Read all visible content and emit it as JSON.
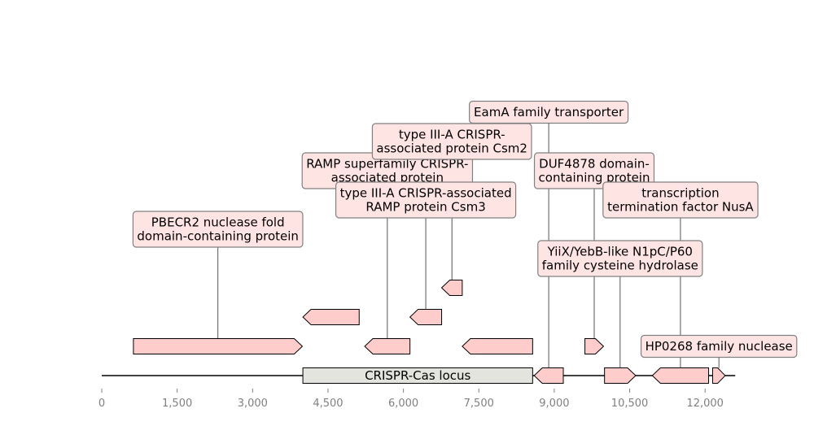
{
  "axis": {
    "min": 0,
    "max": 12600,
    "ticks": [
      {
        "value": 0,
        "label": "0"
      },
      {
        "value": 1500,
        "label": "1,500"
      },
      {
        "value": 3000,
        "label": "3,000"
      },
      {
        "value": 4500,
        "label": "4,500"
      },
      {
        "value": 6000,
        "label": "6,000"
      },
      {
        "value": 7500,
        "label": "7,500"
      },
      {
        "value": 9000,
        "label": "9,000"
      },
      {
        "value": 10500,
        "label": "10,500"
      },
      {
        "value": 12000,
        "label": "12,000"
      }
    ]
  },
  "locus": {
    "label": "CRISPR-Cas locus",
    "start": 4000,
    "end": 8570
  },
  "colors": {
    "gene_fill": "#ffcccc",
    "label_fill": "#ffe4e4",
    "locus_fill": "#e3e4de"
  },
  "genes": [
    {
      "start": 630,
      "end": 3990,
      "strand": 1,
      "level": 1,
      "label": [
        "PBECR2 nuclease fold",
        "domain-containing protein"
      ],
      "label_level": 5
    },
    {
      "start": 4000,
      "end": 5120,
      "strand": -1,
      "level": 2,
      "label": null
    },
    {
      "start": 5230,
      "end": 6130,
      "strand": -1,
      "level": 1,
      "label": [
        "RAMP superfamily CRISPR-",
        "associated protein"
      ],
      "label_level": 7
    },
    {
      "start": 6130,
      "end": 6760,
      "strand": -1,
      "level": 2,
      "label": [
        "type III-A CRISPR-associated",
        "RAMP protein Csm3"
      ],
      "label_level": 6
    },
    {
      "start": 6760,
      "end": 7170,
      "strand": -1,
      "level": 3,
      "label": [
        "type III-A CRISPR-",
        "associated protein Csm2"
      ],
      "label_level": 8
    },
    {
      "start": 7170,
      "end": 8570,
      "strand": -1,
      "level": 1,
      "label": null
    },
    {
      "start": 8600,
      "end": 9180,
      "strand": -1,
      "level": 0,
      "label": [
        "EamA family transporter"
      ],
      "label_level": 9
    },
    {
      "start": 9610,
      "end": 9980,
      "strand": 1,
      "level": 1,
      "label": [
        "DUF4878 domain-",
        "containing protein"
      ],
      "label_level": 7
    },
    {
      "start": 10000,
      "end": 10620,
      "strand": 1,
      "level": 0,
      "label": [
        "YiiX/YebB-like N1pC/P60",
        "family cysteine hydrolase"
      ],
      "label_level": 4
    },
    {
      "start": 10950,
      "end": 12070,
      "strand": -1,
      "level": 0,
      "label": [
        "transcription",
        "termination factor NusA"
      ],
      "label_level": 6
    },
    {
      "start": 12150,
      "end": 12400,
      "strand": 1,
      "level": 0,
      "label": [
        "HP0268 family nuclease"
      ],
      "label_level": 1
    }
  ]
}
